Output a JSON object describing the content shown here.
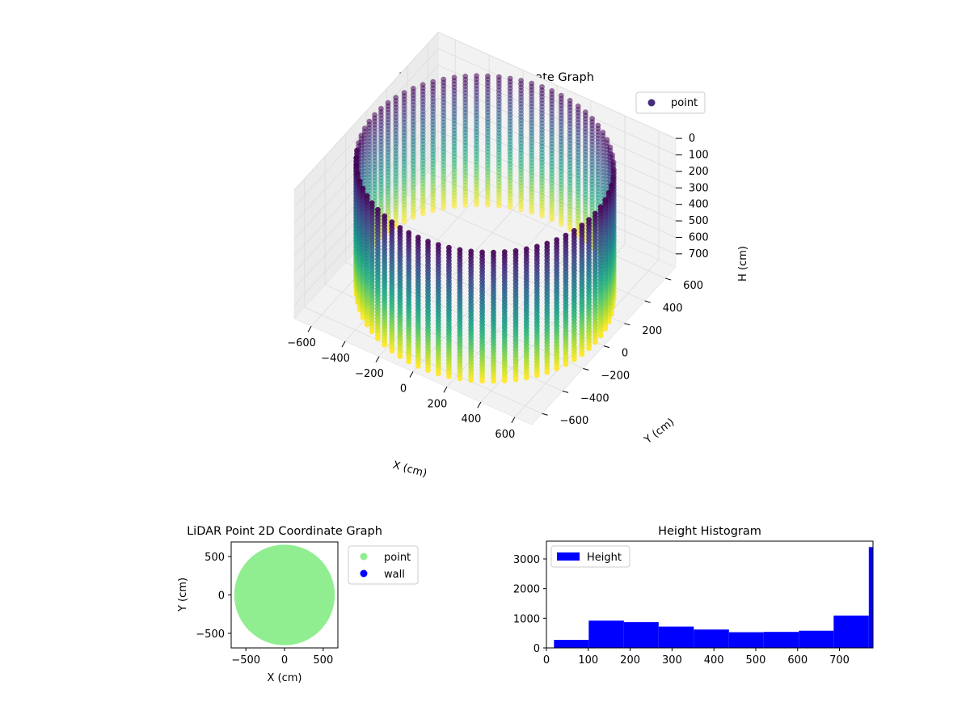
{
  "chart_data": [
    {
      "type": "scatter3d",
      "title": "LiDAR Point 3D Coordinate Graph",
      "xlabel": "X (cm)",
      "ylabel": "Y (cm)",
      "zlabel": "H (cm)",
      "xlim": [
        -700,
        700
      ],
      "ylim": [
        -700,
        700
      ],
      "zlim": [
        0,
        780
      ],
      "z_inverted": true,
      "xticks": [
        -600,
        -400,
        -200,
        0,
        200,
        400,
        600
      ],
      "yticks": [
        -600,
        -400,
        -200,
        0,
        200,
        400,
        600
      ],
      "zticks": [
        0,
        100,
        200,
        300,
        400,
        500,
        600,
        700
      ],
      "grid": true,
      "legend": {
        "position": "top-right",
        "entries": [
          {
            "label": "point",
            "color": "#472d7b"
          }
        ]
      },
      "colormap": "viridis",
      "color_mapping": "inverted height (near floor yellow, near ceiling purple)",
      "series": [
        {
          "name": "point",
          "shape": "cylindrical wall of vertical scan columns",
          "radius_cm": 650,
          "height_cm": [
            0,
            780
          ],
          "column_count": 72,
          "samples_per_column": 40
        }
      ]
    },
    {
      "type": "scatter",
      "title": "LiDAR Point 2D Coordinate Graph",
      "xlabel": "X (cm)",
      "ylabel": "Y (cm)",
      "xlim": [
        -690,
        690
      ],
      "ylim": [
        -690,
        690
      ],
      "xticks": [
        -500,
        0,
        500
      ],
      "yticks": [
        -500,
        0,
        500
      ],
      "legend": {
        "position": "right-outside",
        "entries": [
          {
            "label": "point",
            "color": "#90ee90"
          },
          {
            "label": "wall",
            "color": "#0000ff"
          }
        ]
      },
      "series": [
        {
          "name": "point",
          "color": "#90ee90",
          "shape": "filled disc",
          "radius_cm": 650
        },
        {
          "name": "wall",
          "color": "#0000ff",
          "points": []
        }
      ]
    },
    {
      "type": "histogram",
      "title": "Height Histogram",
      "xlim": [
        0,
        780
      ],
      "ylim": [
        0,
        3600
      ],
      "xticks": [
        0,
        100,
        200,
        300,
        400,
        500,
        600,
        700
      ],
      "yticks": [
        0,
        1000,
        2000,
        3000
      ],
      "legend": {
        "position": "top-left",
        "entries": [
          {
            "label": "Height",
            "color": "#0000ff"
          }
        ]
      },
      "bar_color": "#0000ff",
      "bins": [
        {
          "from": 18,
          "to": 101,
          "count": 270
        },
        {
          "from": 101,
          "to": 185,
          "count": 920
        },
        {
          "from": 185,
          "to": 268,
          "count": 870
        },
        {
          "from": 268,
          "to": 352,
          "count": 720
        },
        {
          "from": 352,
          "to": 436,
          "count": 620
        },
        {
          "from": 436,
          "to": 519,
          "count": 530
        },
        {
          "from": 519,
          "to": 603,
          "count": 540
        },
        {
          "from": 603,
          "to": 686,
          "count": 580
        },
        {
          "from": 686,
          "to": 770,
          "count": 1090
        },
        {
          "from": 770,
          "to": 785,
          "count": 3400
        }
      ]
    }
  ]
}
